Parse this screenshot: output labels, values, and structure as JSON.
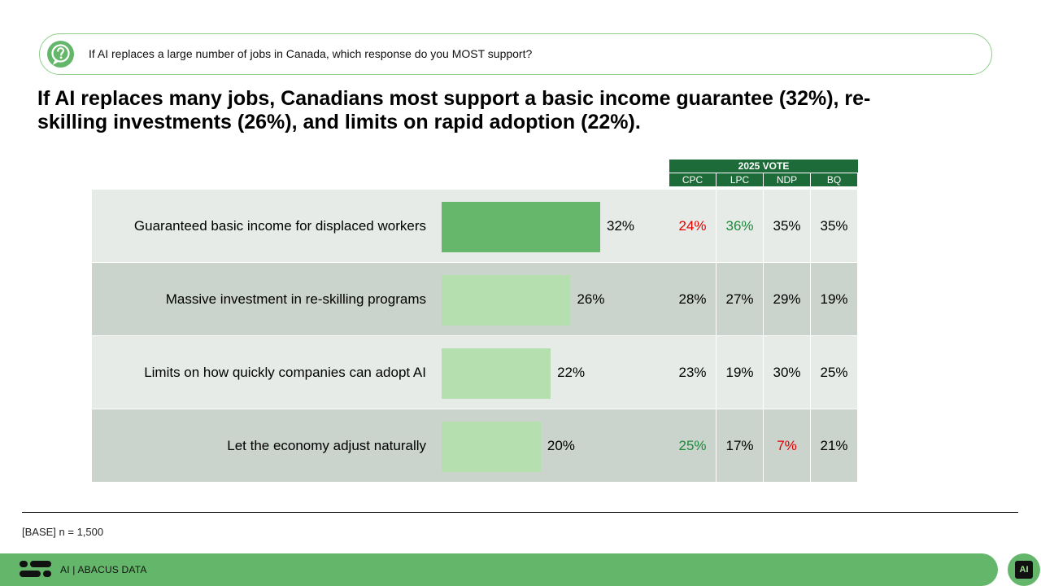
{
  "question": {
    "text": "If AI replaces a large number of jobs in Canada, which response do you MOST support?",
    "icon": "question-icon"
  },
  "headline": "If AI replaces many jobs, Canadians most support a basic income guarantee (32%), re-skilling investments (26%), and limits on rapid adoption (22%).",
  "colors": {
    "bar_highlight": "#66b76b",
    "bar_normal": "#b5dfae",
    "header_green": "#1c6b38",
    "value_red": "#e00000",
    "value_green": "#1a8a3a"
  },
  "chart_data": {
    "type": "bar",
    "orientation": "horizontal",
    "categories": [
      "Guaranteed basic income for displaced workers",
      "Massive investment in re-skilling programs",
      "Limits on how quickly companies can adopt AI",
      "Let the economy adjust naturally"
    ],
    "values": [
      32,
      26,
      22,
      20
    ],
    "value_labels": [
      "32%",
      "26%",
      "22%",
      "20%"
    ],
    "xlim": [
      0,
      36
    ],
    "table": {
      "group_header": "2025 VOTE",
      "columns": [
        "CPC",
        "LPC",
        "NDP",
        "BQ"
      ],
      "rows": [
        [
          {
            "text": "24%",
            "tone": "red"
          },
          {
            "text": "36%",
            "tone": "green"
          },
          {
            "text": "35%",
            "tone": "normal"
          },
          {
            "text": "35%",
            "tone": "normal"
          }
        ],
        [
          {
            "text": "28%",
            "tone": "normal"
          },
          {
            "text": "27%",
            "tone": "normal"
          },
          {
            "text": "29%",
            "tone": "normal"
          },
          {
            "text": "19%",
            "tone": "normal"
          }
        ],
        [
          {
            "text": "23%",
            "tone": "normal"
          },
          {
            "text": "19%",
            "tone": "normal"
          },
          {
            "text": "30%",
            "tone": "normal"
          },
          {
            "text": "25%",
            "tone": "normal"
          }
        ],
        [
          {
            "text": "25%",
            "tone": "green"
          },
          {
            "text": "17%",
            "tone": "normal"
          },
          {
            "text": "7%",
            "tone": "red"
          },
          {
            "text": "21%",
            "tone": "normal"
          }
        ]
      ]
    }
  },
  "base_note": "[BASE] n = 1,500",
  "footer": {
    "text": "AI | ABACUS DATA",
    "logo": "abacus-logo-icon",
    "badge_icon": "ai-chip-icon",
    "badge_text": "AI"
  }
}
